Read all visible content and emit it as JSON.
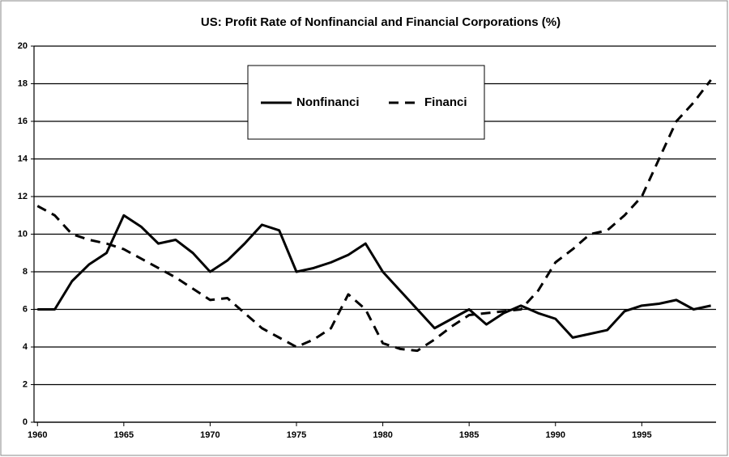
{
  "chart_data": {
    "type": "line",
    "title": "US: Profit Rate of Nonfinancial and Financial Corporations (%)",
    "x": [
      1960,
      1961,
      1962,
      1963,
      1964,
      1965,
      1966,
      1967,
      1968,
      1969,
      1970,
      1971,
      1972,
      1973,
      1974,
      1975,
      1976,
      1977,
      1978,
      1979,
      1980,
      1981,
      1982,
      1983,
      1984,
      1985,
      1986,
      1987,
      1988,
      1989,
      1990,
      1991,
      1992,
      1993,
      1994,
      1995,
      1996,
      1997,
      1998,
      1999
    ],
    "series": [
      {
        "name": "Nonfinanci",
        "color": "#000000",
        "style": "solid",
        "values": [
          6.0,
          6.0,
          7.5,
          8.4,
          9.0,
          11.0,
          10.4,
          9.5,
          9.7,
          9.0,
          8.0,
          8.6,
          9.5,
          10.5,
          10.2,
          8.0,
          8.2,
          8.5,
          8.9,
          9.5,
          8.0,
          7.0,
          6.0,
          5.0,
          5.5,
          6.0,
          5.2,
          5.8,
          6.2,
          5.8,
          5.5,
          4.5,
          4.7,
          4.9,
          5.9,
          6.2,
          6.3,
          6.5,
          6.0,
          6.2
        ]
      },
      {
        "name": "Financi",
        "color": "#000000",
        "style": "dashed",
        "values": [
          11.5,
          11.0,
          10.0,
          9.7,
          9.5,
          9.2,
          8.7,
          8.2,
          7.7,
          7.1,
          6.5,
          6.6,
          5.8,
          5.0,
          4.5,
          4.0,
          4.4,
          5.0,
          6.8,
          6.0,
          4.2,
          3.9,
          3.8,
          4.4,
          5.1,
          5.7,
          5.8,
          5.9,
          6.0,
          7.0,
          8.5,
          9.2,
          10.0,
          10.2,
          11.0,
          12.0,
          14.0,
          16.0,
          17.0,
          18.2
        ]
      }
    ],
    "xlim": [
      1959.8,
      1999.3
    ],
    "xticks": [
      1960,
      1965,
      1970,
      1975,
      1980,
      1985,
      1990,
      1995
    ],
    "ylim": [
      0,
      20
    ],
    "yticks": [
      0,
      2,
      4,
      6,
      8,
      10,
      12,
      14,
      16,
      18,
      20
    ],
    "grid": true
  }
}
